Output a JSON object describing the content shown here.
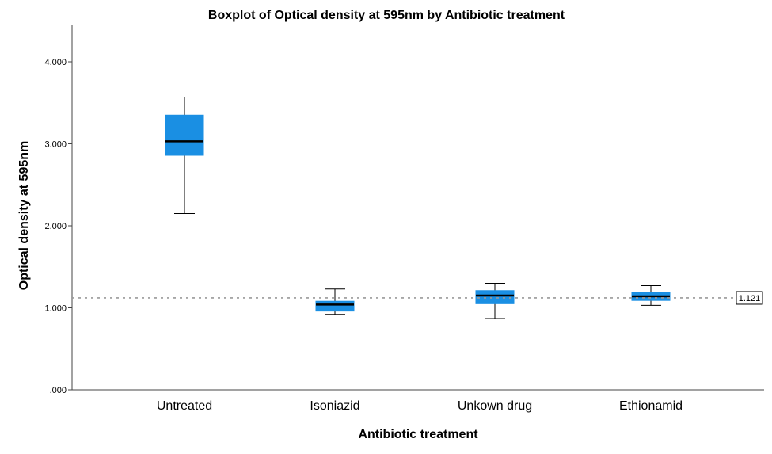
{
  "chart_data": {
    "type": "boxplot",
    "title": "Boxplot of Optical density at 595nm by Antibiotic treatment",
    "xlabel": "Antibiotic treatment",
    "ylabel": "Optical density at 595nm",
    "ylim": [
      0,
      4.45
    ],
    "yticks": [
      0,
      1,
      2,
      3,
      4
    ],
    "ytick_labels": [
      ".000",
      "1.000",
      "2.000",
      "3.000",
      "4.000"
    ],
    "grid": false,
    "legend": "none",
    "box_color": "#1a8fe3",
    "categories": [
      "Untreated",
      "Isoniazid",
      "Unkown drug",
      "Ethionamid"
    ],
    "boxes": [
      {
        "min": 2.15,
        "q1": 2.86,
        "median": 3.03,
        "q3": 3.35,
        "max": 3.57
      },
      {
        "min": 0.92,
        "q1": 0.96,
        "median": 1.04,
        "q3": 1.08,
        "max": 1.23
      },
      {
        "min": 0.87,
        "q1": 1.05,
        "median": 1.15,
        "q3": 1.21,
        "max": 1.3
      },
      {
        "min": 1.03,
        "q1": 1.09,
        "median": 1.14,
        "q3": 1.19,
        "max": 1.27
      }
    ],
    "reference_line": {
      "value": 1.121,
      "label": "1.121"
    }
  }
}
